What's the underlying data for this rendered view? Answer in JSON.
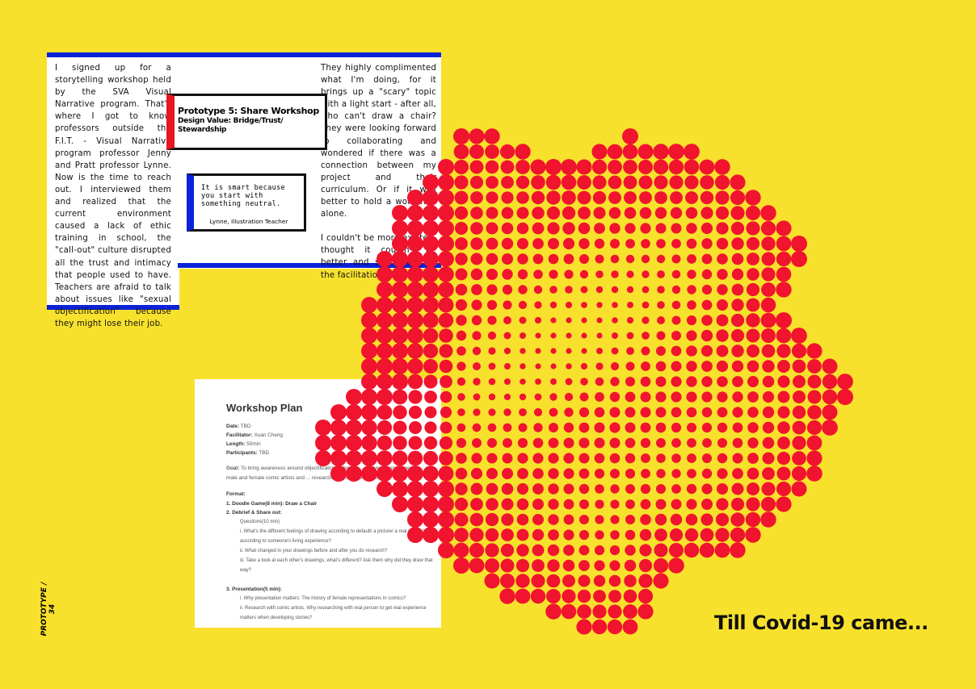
{
  "article": {
    "left_column": "I signed up for a storytelling workshop held by the SVA Visual Narrative program. That's where I got to know professors outside the F.I.T. - Visual Narrative program professor Jenny and Pratt professor Lynne. Now is the time to reach out. I interviewed them and realized that the current environment caused a lack of ethic training in school, the \"call-out\" culture disrupted all the trust and intimacy that people used to have. Teachers are afraid to talk about issues like \"sexual objectification\" because they might lose their job.",
    "right_column_1": "They highly complimented what I'm doing, for it brings up a \"scary\" topic with a light start - after all, who can't draw a chair? They were looking forward to collaborating and wondered if there was a connection between my project and their curriculum. Or if it was better to hold a workshop alone.",
    "right_column_2": "I couldn't be more excited, thought it couldn't be better and soon outlined the facilitation plan.",
    "title": "Prototype 5: Share Workshop",
    "design_value": "Design Value: Bridge/Trust/ Stewardship",
    "quote": "It is smart because you start with something neutral.",
    "quote_author": "Lynne, Illustration Teacher"
  },
  "plan": {
    "heading": "Workshop Plan",
    "fields": [
      {
        "label": "Date:",
        "value": "TBD"
      },
      {
        "label": "Facilitator:",
        "value": "Xuan Cheng"
      },
      {
        "label": "Length:",
        "value": "50min"
      },
      {
        "label": "Participants:",
        "value": "TBD"
      }
    ],
    "goal_label": "Goal:",
    "goal": "To bring awareness around objectification of female ... conversation between male and female comic artists and ... research/communication method.",
    "format_label": "Format:",
    "items": [
      "1. Doodle Game(8 min): Draw a Chair",
      "2. Debrief & Share out:",
      "Questions(10 min)",
      "i. What's the different feelings of drawing according to default/ a picture/ a real person/ according to someone's living experience?",
      "ii. What changed in your drawings before and after you do research?",
      "iii. Take a look at each other's drawings, what's different? Ask them why did they draw that way?",
      "3. Presentation(5 min):",
      "i. Why presentation matters:   The history of female representations in comics?",
      "ii. Research with comic artists. Why researching with real person to get real experience matters when developing stories?"
    ]
  },
  "side_label": "PROTOTYPE / 34",
  "caption": "Till Covid-19 came...",
  "colors": {
    "background": "#f8e12c",
    "dots": "#f0142e",
    "blue": "#0a22d8",
    "red": "#e8161e"
  }
}
